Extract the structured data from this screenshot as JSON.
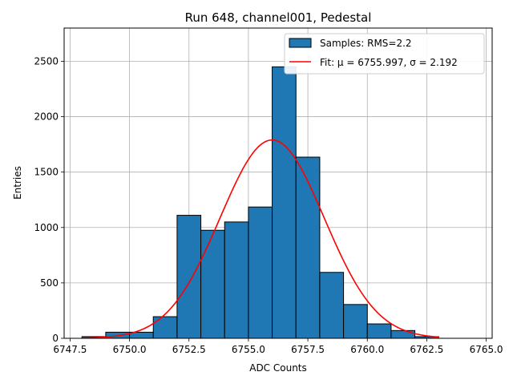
{
  "chart_data": {
    "type": "bar",
    "title": "Run 648, channel001, Pedestal",
    "xlabel": "ADC Counts",
    "ylabel": "Entries",
    "xlim": [
      6747.25,
      6765.25
    ],
    "ylim": [
      0,
      2800
    ],
    "xticks": [
      6747.5,
      6750.0,
      6752.5,
      6755.0,
      6757.5,
      6760.0,
      6762.5,
      6765.0
    ],
    "xtick_labels": [
      "6747.5",
      "6750.0",
      "6752.5",
      "6755.0",
      "6757.5",
      "6760.0",
      "6762.5",
      "6765.0"
    ],
    "yticks": [
      0,
      500,
      1000,
      1500,
      2000,
      2500
    ],
    "ytick_labels": [
      "0",
      "500",
      "1000",
      "1500",
      "2000",
      "2500"
    ],
    "grid": true,
    "legend_position": "top-right",
    "bin_edges": [
      6748,
      6749,
      6750,
      6751,
      6752,
      6753,
      6754,
      6755,
      6756,
      6757,
      6758,
      6759,
      6760,
      6761,
      6762,
      6763
    ],
    "series": [
      {
        "name": "Samples: RMS=2.2",
        "kind": "histogram",
        "color": "#1f77b4",
        "edgecolor": "#000000",
        "values": [
          15,
          55,
          55,
          195,
          1110,
          975,
          1050,
          1185,
          2450,
          1635,
          595,
          305,
          130,
          70,
          15
        ]
      },
      {
        "name": "Fit: μ = 6755.997, σ = 2.192",
        "kind": "gaussian-fit",
        "color": "#ff0000",
        "mu": 6755.997,
        "sigma": 2.192,
        "amplitude": 1790,
        "x_range": [
          6748,
          6763
        ]
      }
    ]
  }
}
